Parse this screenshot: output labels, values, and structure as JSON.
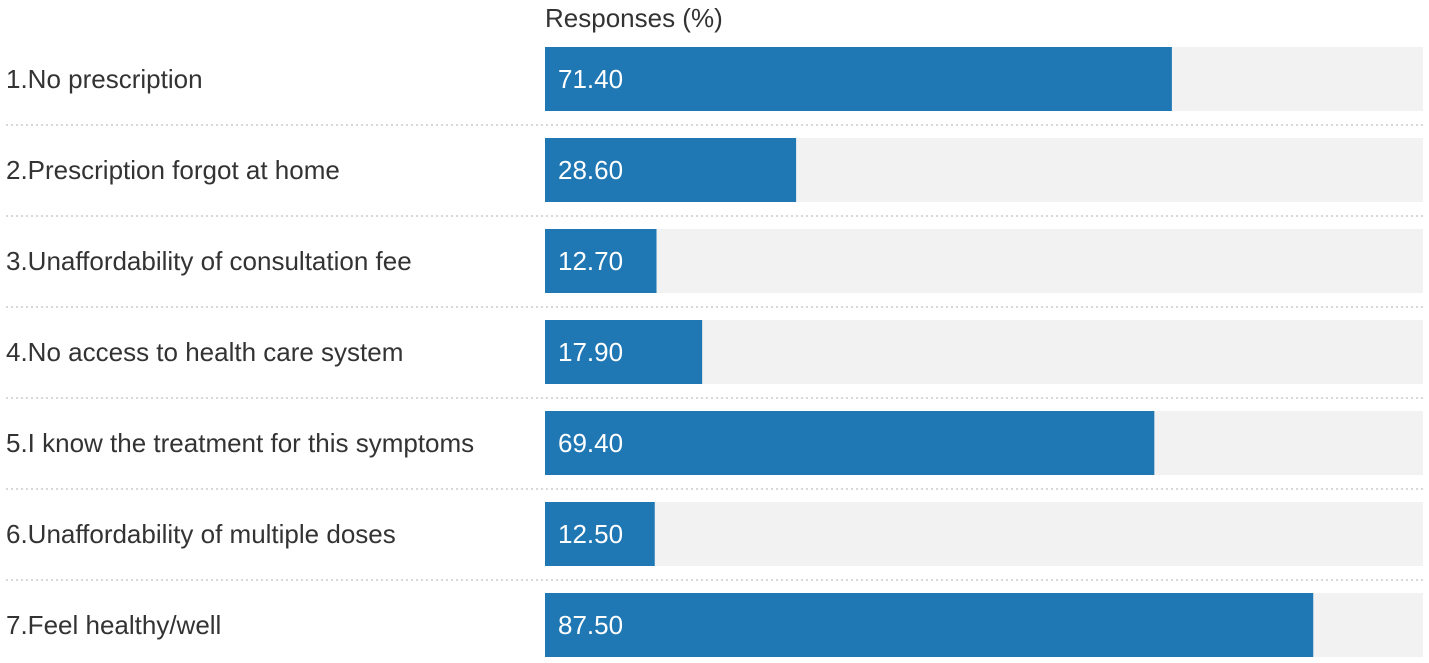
{
  "chart_data": {
    "type": "bar",
    "orientation": "horizontal",
    "column_title": "Responses (%)",
    "categories": [
      "1.No prescription",
      "2.Prescription forgot at home",
      "3.Unaffordability of consultation fee",
      "4.No access to health care system",
      "5.I know the treatment for this symptoms",
      "6.Unaffordability of multiple doses",
      "7.Feel healthy/well"
    ],
    "values": [
      71.4,
      28.6,
      12.7,
      17.9,
      69.4,
      12.5,
      87.5
    ],
    "value_labels": [
      "71.40",
      "28.60",
      "12.70",
      "17.90",
      "69.40",
      "12.50",
      "87.50"
    ],
    "xlim": [
      0,
      100
    ],
    "grid": false,
    "colors": {
      "bar": "#1f77b4",
      "track": "#f2f2f2",
      "separator": "#cccccc"
    }
  }
}
